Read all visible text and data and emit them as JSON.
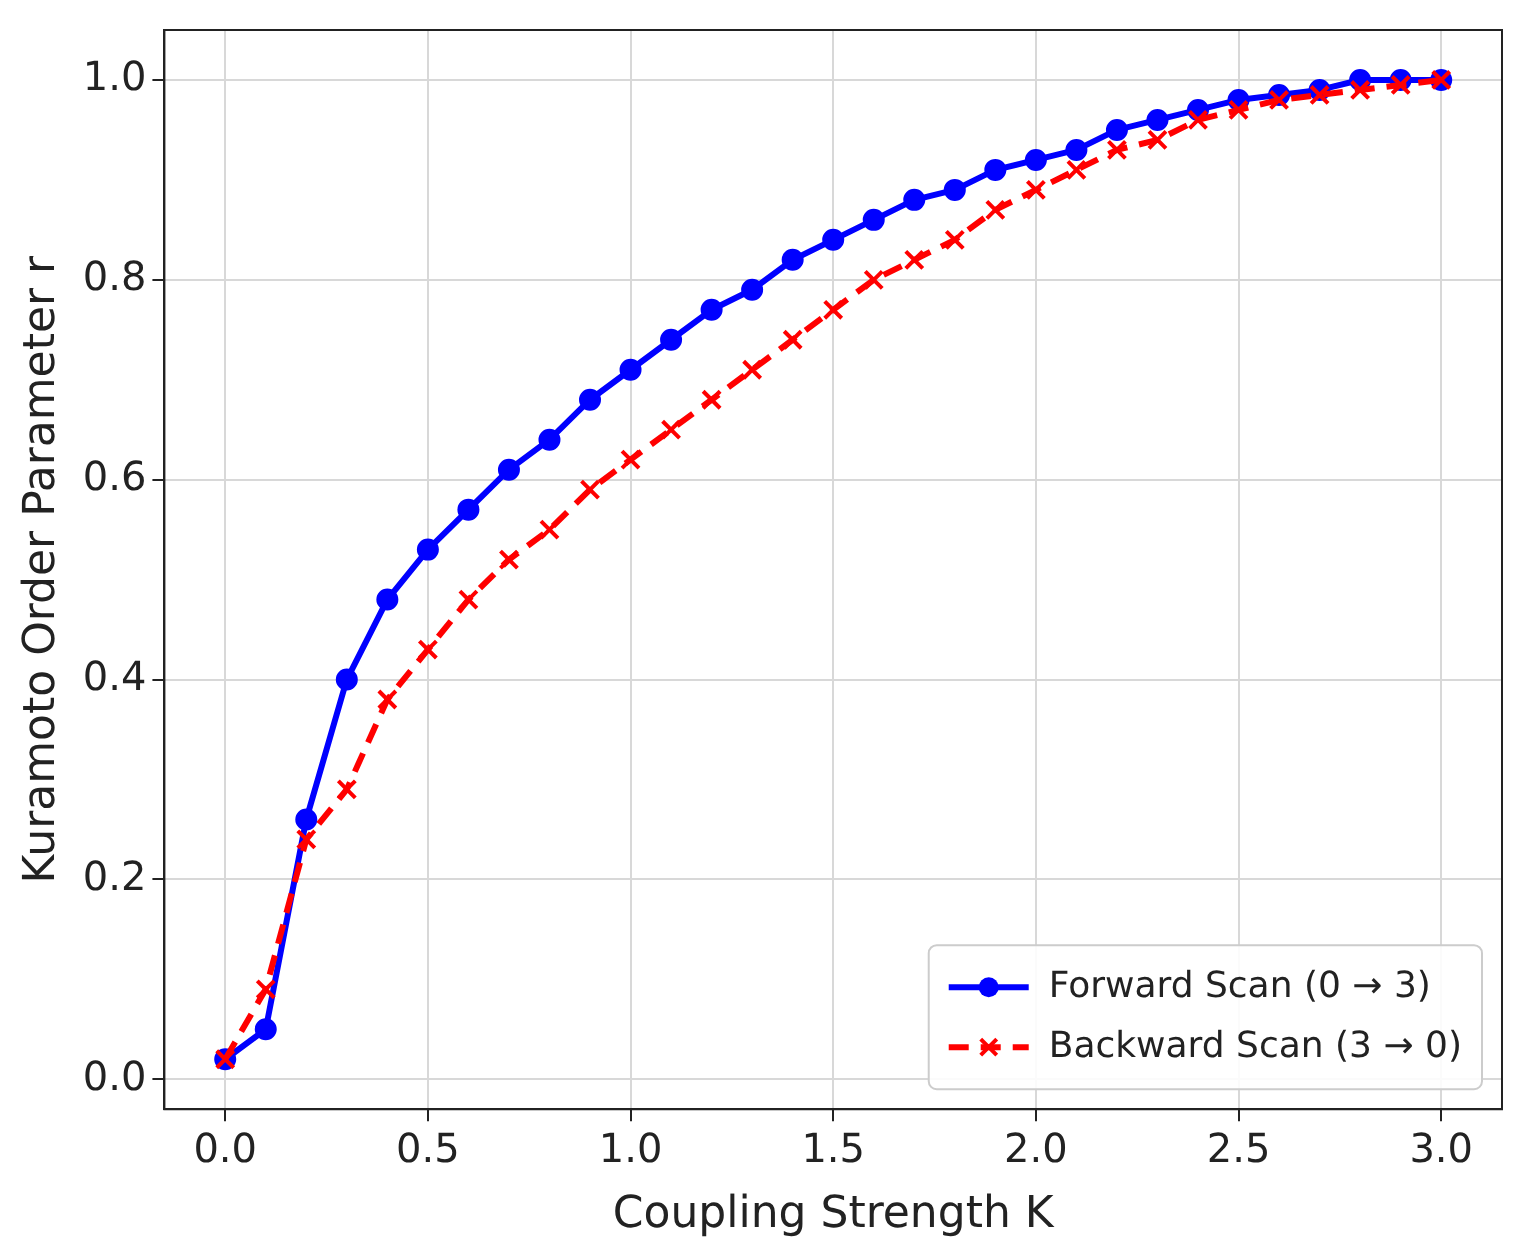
{
  "chart_data": {
    "type": "line",
    "xlabel": "Coupling Strength K",
    "ylabel": "Kuramoto Order Parameter r",
    "x": [
      0,
      0.1,
      0.2,
      0.3,
      0.4,
      0.5,
      0.6,
      0.7,
      0.8,
      0.9,
      1.0,
      1.1,
      1.2,
      1.3,
      1.4,
      1.5,
      1.6,
      1.7,
      1.8,
      1.9,
      2.0,
      2.1,
      2.2,
      2.3,
      2.4,
      2.5,
      2.6,
      2.7,
      2.8,
      2.9,
      3.0
    ],
    "series": [
      {
        "name": "Forward Scan (0 → 3)",
        "color": "#0000ff",
        "marker": "circle",
        "line_style": "solid",
        "values": [
          0.02,
          0.05,
          0.26,
          0.4,
          0.48,
          0.53,
          0.57,
          0.61,
          0.64,
          0.68,
          0.71,
          0.74,
          0.77,
          0.79,
          0.82,
          0.84,
          0.86,
          0.88,
          0.89,
          0.91,
          0.92,
          0.93,
          0.95,
          0.96,
          0.97,
          0.98,
          0.985,
          0.99,
          1.0,
          1.0,
          1.0
        ]
      },
      {
        "name": "Backward Scan (3 → 0)",
        "color": "#ff0000",
        "marker": "cross",
        "line_style": "dashed",
        "values": [
          0.02,
          0.09,
          0.24,
          0.29,
          0.38,
          0.43,
          0.48,
          0.52,
          0.55,
          0.59,
          0.62,
          0.65,
          0.68,
          0.71,
          0.74,
          0.77,
          0.8,
          0.82,
          0.84,
          0.87,
          0.89,
          0.91,
          0.93,
          0.94,
          0.96,
          0.97,
          0.98,
          0.985,
          0.99,
          0.995,
          1.0
        ]
      }
    ],
    "xlim": [
      -0.15,
      3.15
    ],
    "xticks": [
      {
        "value": 0,
        "label": "0.0"
      },
      0.5,
      {
        "value": 1,
        "label": "1.0"
      },
      1.5,
      {
        "value": 2,
        "label": "2.0"
      },
      2.5,
      {
        "value": 3,
        "label": "3.0"
      }
    ],
    "ylim": [
      -0.03,
      1.05
    ],
    "yticks": [
      {
        "value": 0,
        "label": "0.0"
      },
      0.2,
      0.4,
      0.6,
      0.8,
      {
        "value": 1,
        "label": "1.0"
      }
    ],
    "grid": true,
    "legend": "bottom right"
  }
}
